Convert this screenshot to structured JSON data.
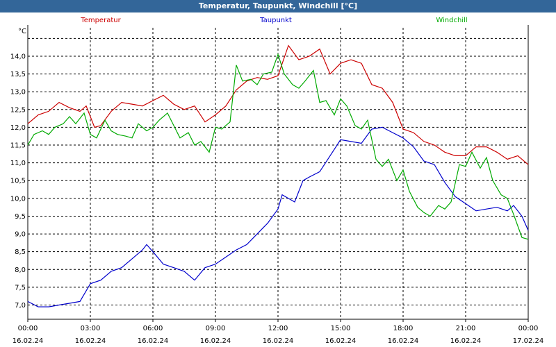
{
  "window": {
    "title": "Temperatur, Taupunkt, Windchill [°C]"
  },
  "chart_data": {
    "type": "line",
    "title": "Temperatur, Taupunkt, Windchill [°C]",
    "ylabel": "°C",
    "ylim": [
      6.6,
      14.8
    ],
    "yticks": [
      "7,0",
      "7,5",
      "8,0",
      "8,5",
      "9,0",
      "9,5",
      "10,0",
      "10,5",
      "11,0",
      "11,5",
      "12,0",
      "12,5",
      "13,0",
      "13,5",
      "14,0"
    ],
    "xlim": [
      0,
      24
    ],
    "xticks": [
      {
        "time": "00:00",
        "date": "16.02.24"
      },
      {
        "time": "03:00",
        "date": "16.02.24"
      },
      {
        "time": "06:00",
        "date": "16.02.24"
      },
      {
        "time": "09:00",
        "date": "16.02.24"
      },
      {
        "time": "12:00",
        "date": "16.02.24"
      },
      {
        "time": "15:00",
        "date": "16.02.24"
      },
      {
        "time": "18:00",
        "date": "16.02.24"
      },
      {
        "time": "21:00",
        "date": "16.02.24"
      },
      {
        "time": "00:00",
        "date": "17.02.24"
      }
    ],
    "grid": true,
    "series": [
      {
        "name": "Temperatur",
        "color": "#cc0000",
        "points": [
          [
            0,
            12.1
          ],
          [
            0.5,
            12.35
          ],
          [
            1,
            12.45
          ],
          [
            1.5,
            12.7
          ],
          [
            2,
            12.55
          ],
          [
            2.5,
            12.45
          ],
          [
            2.8,
            12.6
          ],
          [
            3.2,
            12.0
          ],
          [
            3.5,
            12.05
          ],
          [
            4,
            12.45
          ],
          [
            4.5,
            12.7
          ],
          [
            5,
            12.65
          ],
          [
            5.5,
            12.6
          ],
          [
            6,
            12.75
          ],
          [
            6.5,
            12.9
          ],
          [
            7,
            12.65
          ],
          [
            7.5,
            12.5
          ],
          [
            8,
            12.6
          ],
          [
            8.5,
            12.15
          ],
          [
            9,
            12.35
          ],
          [
            9.5,
            12.6
          ],
          [
            10,
            13.05
          ],
          [
            10.5,
            13.3
          ],
          [
            11,
            13.4
          ],
          [
            11.5,
            13.35
          ],
          [
            12,
            13.45
          ],
          [
            12.5,
            14.3
          ],
          [
            13,
            13.9
          ],
          [
            13.5,
            14.0
          ],
          [
            14,
            14.2
          ],
          [
            14.5,
            13.5
          ],
          [
            15,
            13.8
          ],
          [
            15.5,
            13.9
          ],
          [
            16,
            13.8
          ],
          [
            16.5,
            13.2
          ],
          [
            17,
            13.1
          ],
          [
            17.5,
            12.7
          ],
          [
            18,
            11.95
          ],
          [
            18.5,
            11.85
          ],
          [
            19,
            11.6
          ],
          [
            19.5,
            11.5
          ],
          [
            20,
            11.3
          ],
          [
            20.5,
            11.2
          ],
          [
            21,
            11.2
          ],
          [
            21.5,
            11.45
          ],
          [
            22,
            11.45
          ],
          [
            22.5,
            11.3
          ],
          [
            23,
            11.1
          ],
          [
            23.5,
            11.2
          ],
          [
            24,
            10.95
          ]
        ]
      },
      {
        "name": "Taupunkt",
        "color": "#0000cc",
        "points": [
          [
            0,
            7.1
          ],
          [
            0.5,
            6.95
          ],
          [
            1,
            6.95
          ],
          [
            1.5,
            7.0
          ],
          [
            2,
            7.05
          ],
          [
            2.5,
            7.1
          ],
          [
            3,
            7.6
          ],
          [
            3.5,
            7.7
          ],
          [
            4,
            7.95
          ],
          [
            4.5,
            8.05
          ],
          [
            5,
            8.3
          ],
          [
            5.5,
            8.55
          ],
          [
            5.7,
            8.7
          ],
          [
            6,
            8.5
          ],
          [
            6.5,
            8.15
          ],
          [
            7,
            8.05
          ],
          [
            7.5,
            7.95
          ],
          [
            8,
            7.7
          ],
          [
            8.5,
            8.05
          ],
          [
            9,
            8.15
          ],
          [
            9.5,
            8.35
          ],
          [
            10,
            8.55
          ],
          [
            10.5,
            8.7
          ],
          [
            11,
            9.0
          ],
          [
            11.5,
            9.3
          ],
          [
            12,
            9.7
          ],
          [
            12.2,
            10.1
          ],
          [
            12.5,
            10.0
          ],
          [
            12.8,
            9.9
          ],
          [
            13.2,
            10.5
          ],
          [
            13.5,
            10.6
          ],
          [
            14,
            10.75
          ],
          [
            14.5,
            11.2
          ],
          [
            15,
            11.65
          ],
          [
            15.5,
            11.6
          ],
          [
            16,
            11.55
          ],
          [
            16.5,
            11.95
          ],
          [
            17,
            12.0
          ],
          [
            17.5,
            11.85
          ],
          [
            18,
            11.7
          ],
          [
            18.5,
            11.45
          ],
          [
            19,
            11.05
          ],
          [
            19.5,
            10.95
          ],
          [
            20,
            10.45
          ],
          [
            20.5,
            10.05
          ],
          [
            21,
            9.85
          ],
          [
            21.5,
            9.65
          ],
          [
            22,
            9.7
          ],
          [
            22.5,
            9.75
          ],
          [
            23,
            9.65
          ],
          [
            23.3,
            9.8
          ],
          [
            23.7,
            9.5
          ],
          [
            24,
            9.1
          ]
        ]
      },
      {
        "name": "Windchill",
        "color": "#00aa00",
        "points": [
          [
            0,
            11.5
          ],
          [
            0.3,
            11.8
          ],
          [
            0.7,
            11.9
          ],
          [
            1,
            11.8
          ],
          [
            1.3,
            12.0
          ],
          [
            1.7,
            12.1
          ],
          [
            2,
            12.3
          ],
          [
            2.3,
            12.1
          ],
          [
            2.7,
            12.4
          ],
          [
            3,
            11.8
          ],
          [
            3.3,
            11.7
          ],
          [
            3.7,
            12.2
          ],
          [
            4,
            11.9
          ],
          [
            4.3,
            11.8
          ],
          [
            4.7,
            11.75
          ],
          [
            5,
            11.7
          ],
          [
            5.3,
            12.1
          ],
          [
            5.7,
            11.9
          ],
          [
            6,
            12.0
          ],
          [
            6.3,
            12.2
          ],
          [
            6.7,
            12.4
          ],
          [
            7,
            12.05
          ],
          [
            7.3,
            11.7
          ],
          [
            7.7,
            11.85
          ],
          [
            8,
            11.5
          ],
          [
            8.3,
            11.6
          ],
          [
            8.7,
            11.3
          ],
          [
            9,
            12.0
          ],
          [
            9.3,
            11.95
          ],
          [
            9.7,
            12.15
          ],
          [
            10,
            13.75
          ],
          [
            10.3,
            13.3
          ],
          [
            10.7,
            13.35
          ],
          [
            11,
            13.2
          ],
          [
            11.3,
            13.5
          ],
          [
            11.7,
            13.55
          ],
          [
            12,
            14.05
          ],
          [
            12.3,
            13.5
          ],
          [
            12.7,
            13.2
          ],
          [
            13,
            13.1
          ],
          [
            13.3,
            13.3
          ],
          [
            13.7,
            13.6
          ],
          [
            14,
            12.7
          ],
          [
            14.3,
            12.75
          ],
          [
            14.7,
            12.35
          ],
          [
            15,
            12.8
          ],
          [
            15.3,
            12.6
          ],
          [
            15.7,
            12.05
          ],
          [
            16,
            11.95
          ],
          [
            16.3,
            12.2
          ],
          [
            16.7,
            11.1
          ],
          [
            17,
            10.9
          ],
          [
            17.3,
            11.1
          ],
          [
            17.7,
            10.5
          ],
          [
            18,
            10.8
          ],
          [
            18.3,
            10.2
          ],
          [
            18.7,
            9.75
          ],
          [
            19,
            9.6
          ],
          [
            19.3,
            9.5
          ],
          [
            19.7,
            9.8
          ],
          [
            20,
            9.7
          ],
          [
            20.3,
            9.9
          ],
          [
            20.7,
            10.95
          ],
          [
            21,
            10.9
          ],
          [
            21.3,
            11.3
          ],
          [
            21.7,
            10.85
          ],
          [
            22,
            11.15
          ],
          [
            22.3,
            10.5
          ],
          [
            22.7,
            10.1
          ],
          [
            23,
            10.0
          ],
          [
            23.3,
            9.55
          ],
          [
            23.7,
            8.9
          ],
          [
            24,
            8.85
          ]
        ]
      }
    ]
  }
}
